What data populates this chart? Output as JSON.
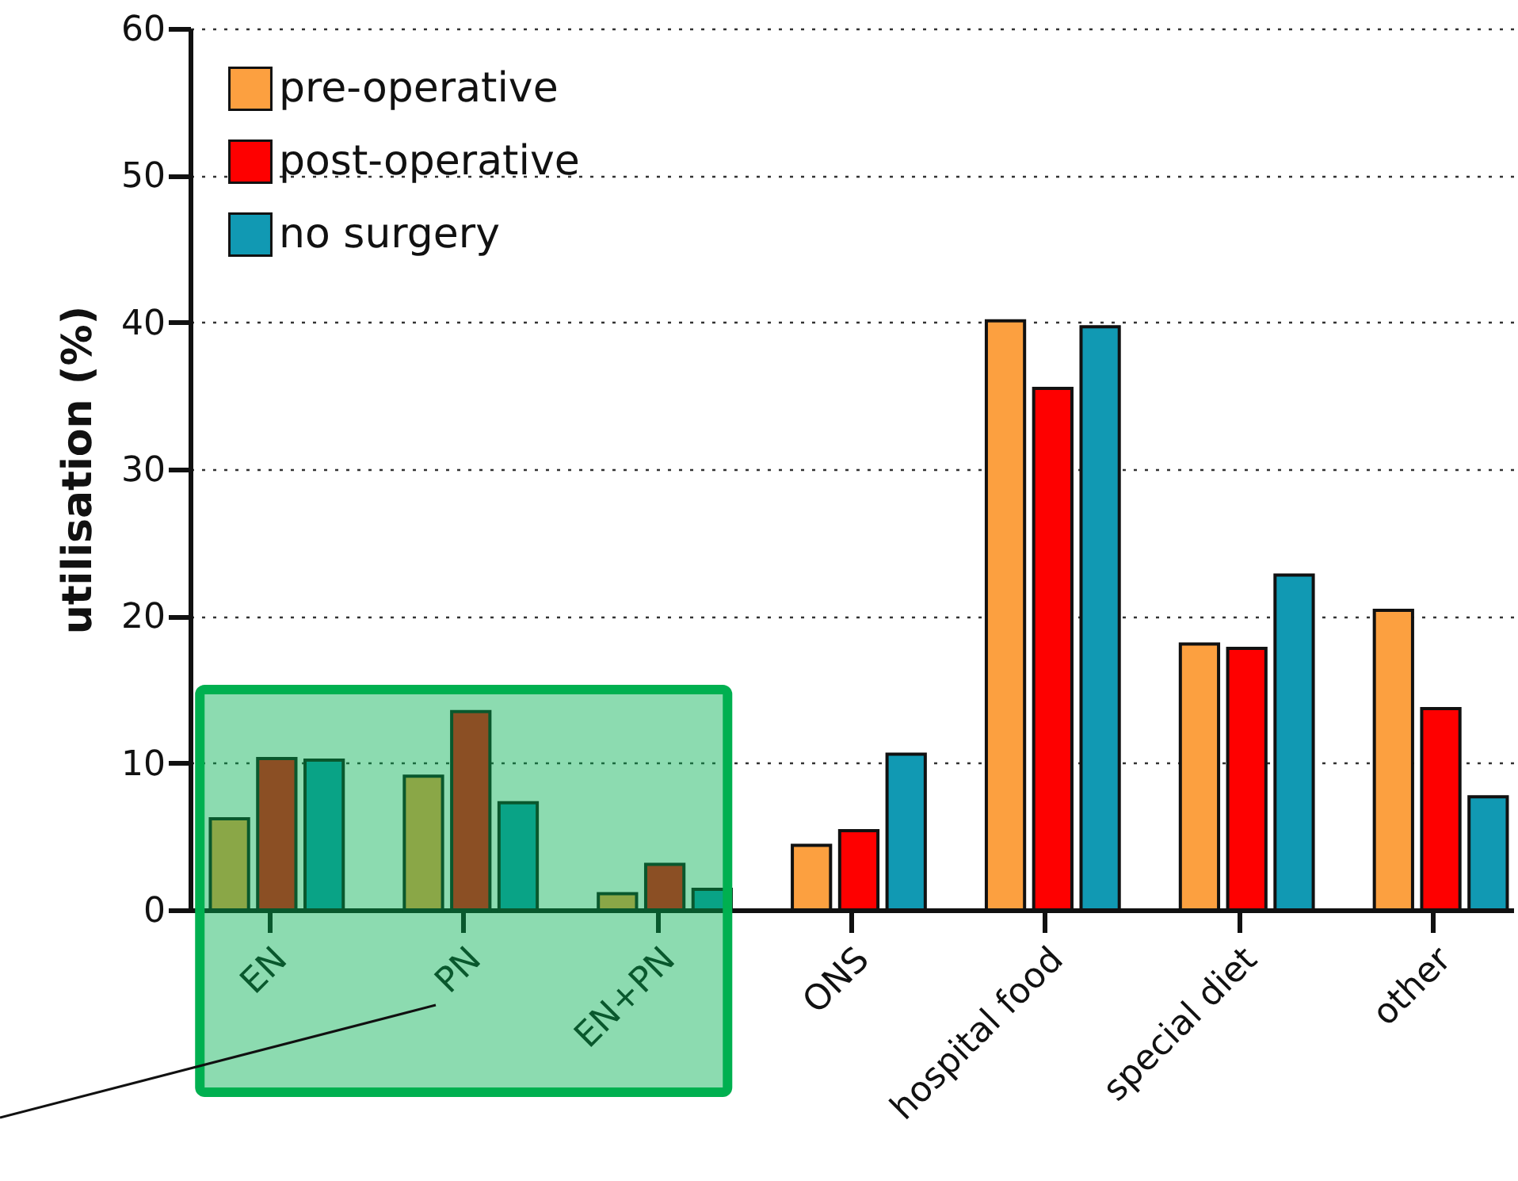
{
  "chart_data": {
    "type": "bar",
    "ylabel": "utilisation (%)",
    "categories": [
      "EN",
      "PN",
      "EN+PN",
      "ONS",
      "hospital food",
      "special diet",
      "other"
    ],
    "series": [
      {
        "name": "pre-operative",
        "color": "#fca040",
        "values": [
          6.2,
          9.1,
          1.1,
          4.4,
          40.1,
          18.1,
          20.4
        ]
      },
      {
        "name": "post-operative",
        "color": "#fe0000",
        "values": [
          10.3,
          13.5,
          3.1,
          5.4,
          35.5,
          17.8,
          13.7
        ]
      },
      {
        "name": "no surgery",
        "color": "#1199b3",
        "values": [
          10.2,
          7.3,
          1.4,
          10.6,
          39.7,
          22.8,
          7.7
        ]
      }
    ],
    "ylim": [
      0,
      60
    ],
    "yticks": [
      0,
      10,
      20,
      30,
      40,
      50,
      60
    ],
    "grid": "y",
    "legend": "top left",
    "bands": [
      {
        "axis": "x",
        "from": "EN",
        "to": "EN+PN",
        "color": "#00b050"
      }
    ]
  }
}
